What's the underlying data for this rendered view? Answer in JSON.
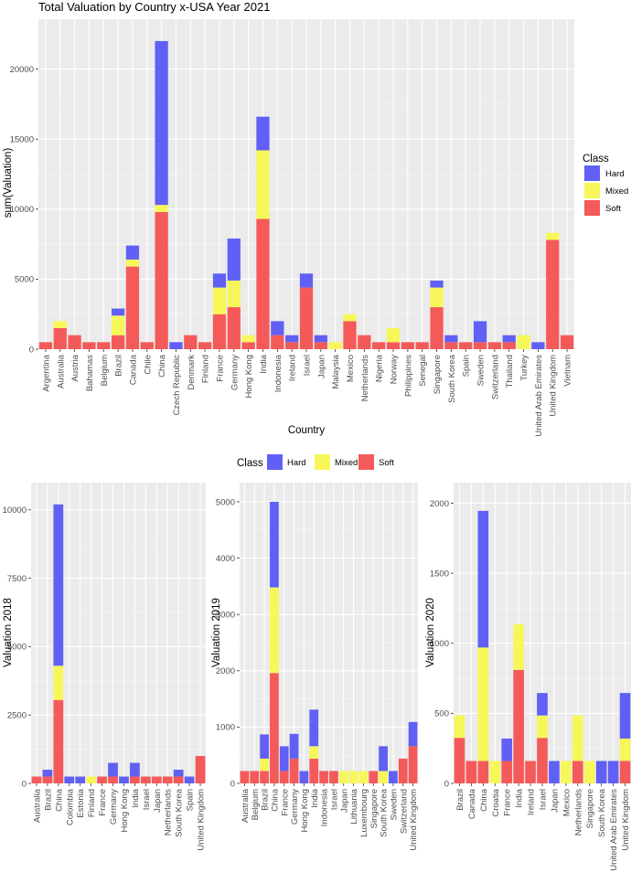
{
  "colors": {
    "Hard": "#6060f5",
    "Mixed": "#f7f75a",
    "Soft": "#f55a5a",
    "panel": "#ebebeb",
    "grid": "#ffffff"
  },
  "chart_data": [
    {
      "type": "bar",
      "stacked": true,
      "title": "Total Valuation by Country x-USA Year 2021",
      "xlabel": "Country",
      "ylabel": "sum(Valuation)",
      "ylim": [
        0,
        22500
      ],
      "yticks": [
        0,
        5000,
        10000,
        15000,
        20000
      ],
      "legend": {
        "title": "Class",
        "position": "right",
        "items": [
          "Hard",
          "Mixed",
          "Soft"
        ]
      },
      "categories": [
        "Argentina",
        "Australia",
        "Austria",
        "Bahamas",
        "Belgium",
        "Brazil",
        "Canada",
        "Chile",
        "China",
        "Czech Republic",
        "Denmark",
        "Finland",
        "France",
        "Germany",
        "Hong Kong",
        "India",
        "Indonesia",
        "Ireland",
        "Israel",
        "Japan",
        "Malaysia",
        "Mexico",
        "Netherlands",
        "Nigeria",
        "Norway",
        "Philippines",
        "Senegal",
        "Singapore",
        "South Korea",
        "Spain",
        "Sweden",
        "Switzerland",
        "Thailand",
        "Turkey",
        "United Arab Emirates",
        "United Kingdom",
        "Vietnam"
      ],
      "series": [
        {
          "name": "Soft",
          "values": [
            500,
            1500,
            1000,
            500,
            500,
            1000,
            5900,
            500,
            9800,
            0,
            1000,
            500,
            2500,
            3000,
            500,
            9300,
            1000,
            500,
            4400,
            500,
            0,
            2000,
            1000,
            500,
            500,
            500,
            500,
            3000,
            500,
            500,
            500,
            500,
            500,
            0,
            0,
            7800,
            1000
          ]
        },
        {
          "name": "Mixed",
          "values": [
            0,
            500,
            0,
            0,
            0,
            1400,
            500,
            0,
            500,
            0,
            0,
            0,
            1900,
            1900,
            500,
            4900,
            0,
            0,
            0,
            0,
            500,
            500,
            0,
            0,
            1000,
            0,
            0,
            1400,
            0,
            0,
            0,
            0,
            0,
            1000,
            0,
            500,
            0
          ]
        },
        {
          "name": "Hard",
          "values": [
            0,
            0,
            0,
            0,
            0,
            500,
            1000,
            0,
            11700,
            500,
            0,
            0,
            1000,
            3000,
            0,
            2400,
            1000,
            500,
            1000,
            500,
            0,
            0,
            0,
            0,
            0,
            0,
            0,
            500,
            500,
            0,
            1500,
            0,
            500,
            0,
            500,
            0,
            0
          ]
        }
      ]
    },
    {
      "type": "bar",
      "stacked": true,
      "title": "",
      "xlabel": "",
      "ylabel": "Valuation 2018",
      "ylim": [
        0,
        10500
      ],
      "yticks": [
        0,
        2500,
        5000,
        7500,
        10000
      ],
      "legend": {
        "title": "Class",
        "position": "top",
        "items": [
          "Hard",
          "Mixed",
          "Soft"
        ]
      },
      "categories": [
        "Australia",
        "Brazil",
        "China",
        "Colombia",
        "Estonia",
        "Finland",
        "France",
        "Germany",
        "Hong Kong",
        "India",
        "Israel",
        "Japan",
        "Netherlands",
        "South Korea",
        "Spain",
        "United Kingdom"
      ],
      "series": [
        {
          "name": "Soft",
          "values": [
            250,
            250,
            3050,
            0,
            0,
            0,
            250,
            250,
            0,
            250,
            250,
            250,
            250,
            250,
            0,
            1000
          ]
        },
        {
          "name": "Mixed",
          "values": [
            0,
            0,
            1250,
            0,
            0,
            250,
            0,
            0,
            0,
            0,
            0,
            0,
            0,
            0,
            0,
            0
          ]
        },
        {
          "name": "Hard",
          "values": [
            0,
            250,
            5900,
            250,
            250,
            0,
            0,
            500,
            250,
            500,
            0,
            0,
            0,
            250,
            250,
            0
          ]
        }
      ]
    },
    {
      "type": "bar",
      "stacked": true,
      "title": "",
      "xlabel": "",
      "ylabel": "Valuation 2019",
      "ylim": [
        0,
        5100
      ],
      "yticks": [
        0,
        1000,
        2000,
        3000,
        4000,
        5000
      ],
      "categories": [
        "Australia",
        "Belgium",
        "Brazil",
        "China",
        "France",
        "Germany",
        "Hong Kong",
        "India",
        "Indonesia",
        "Israel",
        "Japan",
        "Lithuania",
        "Luxembourg",
        "Singapore",
        "South Korea",
        "Sweden",
        "Switzerland",
        "United Kingdom"
      ],
      "series": [
        {
          "name": "Soft",
          "values": [
            220,
            220,
            220,
            1960,
            220,
            440,
            0,
            440,
            220,
            220,
            0,
            0,
            0,
            220,
            0,
            0,
            440,
            660
          ]
        },
        {
          "name": "Mixed",
          "values": [
            0,
            0,
            220,
            1520,
            0,
            0,
            0,
            220,
            0,
            0,
            220,
            220,
            220,
            0,
            220,
            0,
            0,
            0
          ]
        },
        {
          "name": "Hard",
          "values": [
            0,
            0,
            430,
            1520,
            440,
            440,
            220,
            650,
            0,
            0,
            0,
            0,
            0,
            0,
            440,
            220,
            0,
            430
          ]
        }
      ]
    },
    {
      "type": "bar",
      "stacked": true,
      "title": "",
      "xlabel": "",
      "ylabel": "Valuation 2020",
      "ylim": [
        0,
        2050
      ],
      "yticks": [
        0,
        500,
        1000,
        1500,
        2000
      ],
      "categories": [
        "Brazil",
        "Canada",
        "China",
        "Croatia",
        "France",
        "India",
        "Ireland",
        "Israel",
        "Japan",
        "Mexico",
        "Netherlands",
        "Singapore",
        "South Korea",
        "United Arab Emirates",
        "United Kingdom"
      ],
      "series": [
        {
          "name": "Soft",
          "values": [
            325,
            160,
            160,
            0,
            160,
            810,
            160,
            325,
            0,
            0,
            160,
            0,
            0,
            0,
            160
          ]
        },
        {
          "name": "Mixed",
          "values": [
            160,
            0,
            810,
            160,
            0,
            325,
            0,
            160,
            0,
            160,
            325,
            160,
            0,
            0,
            160
          ]
        },
        {
          "name": "Hard",
          "values": [
            0,
            0,
            975,
            0,
            160,
            0,
            0,
            160,
            160,
            0,
            0,
            0,
            160,
            160,
            325
          ]
        }
      ]
    }
  ]
}
